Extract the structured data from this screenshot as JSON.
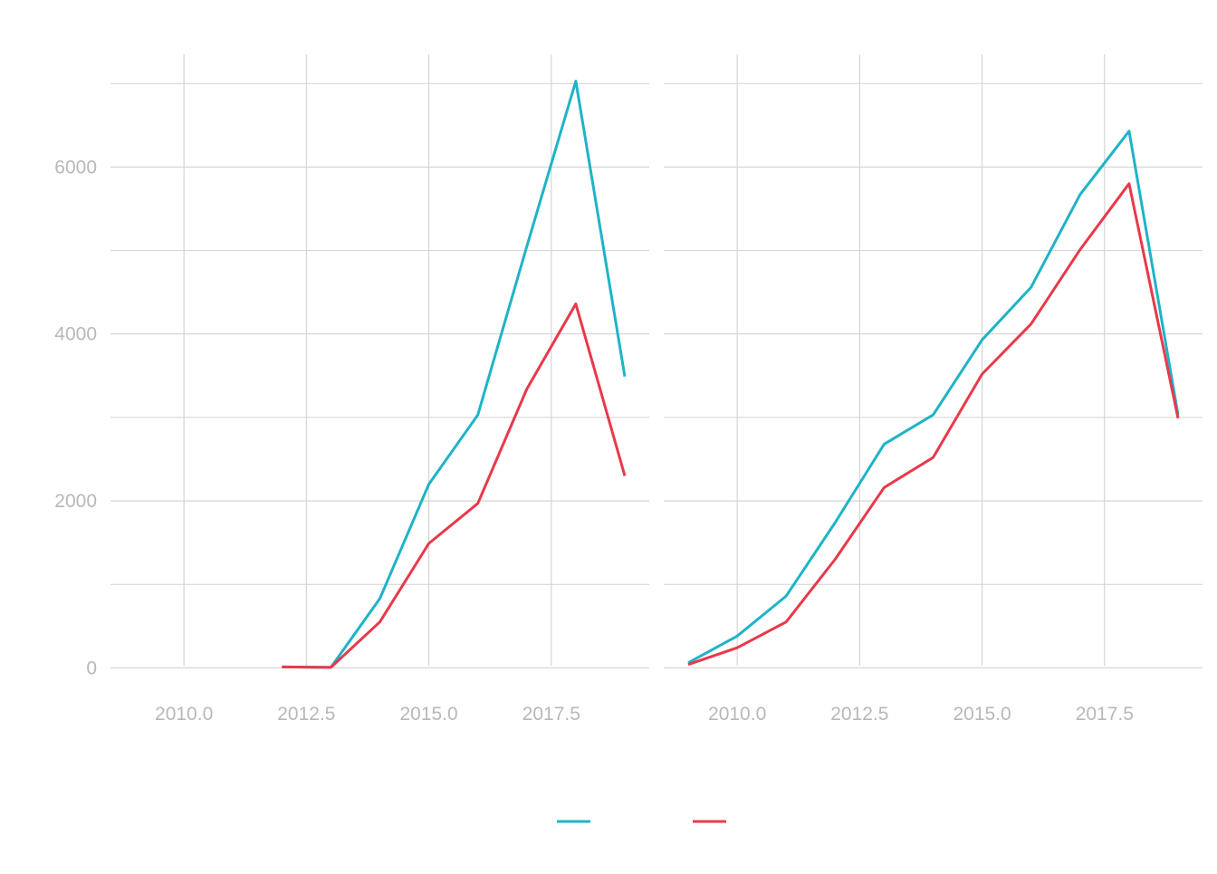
{
  "chart_data": [
    {
      "type": "line",
      "title": "",
      "xlabel": "",
      "ylabel": "",
      "xlim": [
        2008.5,
        2019.5
      ],
      "ylim": [
        -300,
        7350
      ],
      "x_ticks": [
        2010.0,
        2012.5,
        2015.0,
        2017.5
      ],
      "x_tick_labels": [
        "2010.0",
        "2012.5",
        "2015.0",
        "2017.5"
      ],
      "y_ticks": [
        0,
        2000,
        4000,
        6000
      ],
      "y_tick_labels": [
        "0",
        "2000",
        "4000",
        "6000"
      ],
      "grid": true,
      "series": [
        {
          "color": "#1fb3c8",
          "x": [
            2012,
            2013,
            2014,
            2015,
            2016,
            2017,
            2018,
            2019
          ],
          "y": [
            10,
            5,
            830,
            2200,
            3030,
            5050,
            7030,
            3490
          ]
        },
        {
          "color": "#e8394a",
          "x": [
            2012,
            2013,
            2014,
            2015,
            2016,
            2017,
            2018,
            2019
          ],
          "y": [
            10,
            5,
            550,
            1490,
            1970,
            3340,
            4360,
            2300
          ]
        }
      ]
    },
    {
      "type": "line",
      "title": "",
      "xlabel": "",
      "ylabel": "",
      "xlim": [
        2008.5,
        2019.5
      ],
      "ylim": [
        -300,
        7350
      ],
      "x_ticks": [
        2010.0,
        2012.5,
        2015.0,
        2017.5
      ],
      "x_tick_labels": [
        "2010.0",
        "2012.5",
        "2015.0",
        "2017.5"
      ],
      "grid": true,
      "series": [
        {
          "color": "#1fb3c8",
          "x": [
            2009,
            2010,
            2011,
            2012,
            2013,
            2014,
            2015,
            2016,
            2017,
            2018,
            2019
          ],
          "y": [
            60,
            380,
            860,
            1740,
            2680,
            3030,
            3930,
            4560,
            5670,
            6430,
            3030
          ]
        },
        {
          "color": "#e8394a",
          "x": [
            2009,
            2010,
            2011,
            2012,
            2013,
            2014,
            2015,
            2016,
            2017,
            2018,
            2019
          ],
          "y": [
            40,
            240,
            550,
            1300,
            2160,
            2520,
            3520,
            4120,
            5010,
            5800,
            2990
          ]
        }
      ]
    }
  ],
  "legend": {
    "placement": "bottom",
    "items": [
      {
        "label": "",
        "color": "#1fb3c8"
      },
      {
        "label": "",
        "color": "#e8394a"
      }
    ]
  },
  "style": {
    "grid_color": "#d2d2d2",
    "tick_label_color": "#b8b8b8"
  }
}
